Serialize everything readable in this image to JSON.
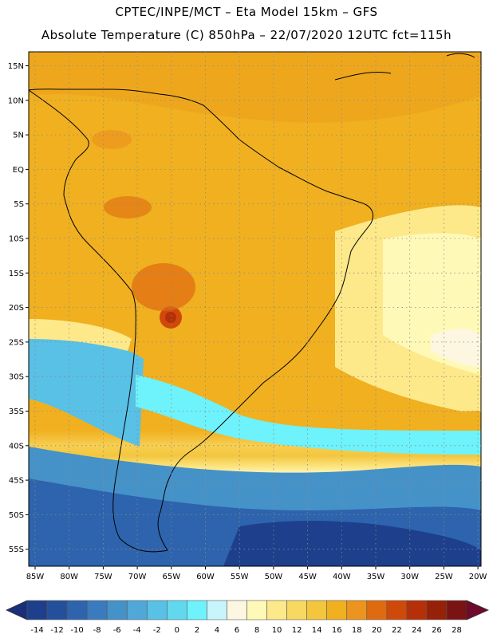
{
  "header": {
    "line1": "CPTEC/INPE/MCT –  Eta Model 15km – GFS",
    "line2": "Absolute Temperature (C) 850hPa – 22/07/2020 12UTC fct=115h"
  },
  "map": {
    "lat_labels": [
      "15N",
      "10N",
      "5N",
      "EQ",
      "5S",
      "10S",
      "15S",
      "20S",
      "25S",
      "30S",
      "35S",
      "40S",
      "45S",
      "50S",
      "55S"
    ],
    "lon_labels": [
      "85W",
      "80W",
      "75W",
      "70W",
      "65W",
      "60W",
      "55W",
      "50W",
      "45W",
      "40W",
      "35W",
      "30W",
      "25W",
      "20W"
    ]
  },
  "colorbar": {
    "labels": [
      "-14",
      "-12",
      "-10",
      "-8",
      "-6",
      "-4",
      "-2",
      "0",
      "2",
      "4",
      "6",
      "8",
      "10",
      "12",
      "14",
      "16",
      "18",
      "20",
      "22",
      "24",
      "26",
      "28"
    ],
    "colors": [
      "#1e3f8c",
      "#24509b",
      "#2d64ad",
      "#3a7bbf",
      "#4592c8",
      "#4fa8d8",
      "#59c0e6",
      "#62d8ef",
      "#6ef2fb",
      "#c8f4fb",
      "#fdf6e0",
      "#fff9b8",
      "#fde98a",
      "#f8d860",
      "#f3c63e",
      "#f0b020",
      "#ec941e",
      "#e06a10",
      "#cf4a0a",
      "#b53008",
      "#962008",
      "#7a1414"
    ]
  }
}
